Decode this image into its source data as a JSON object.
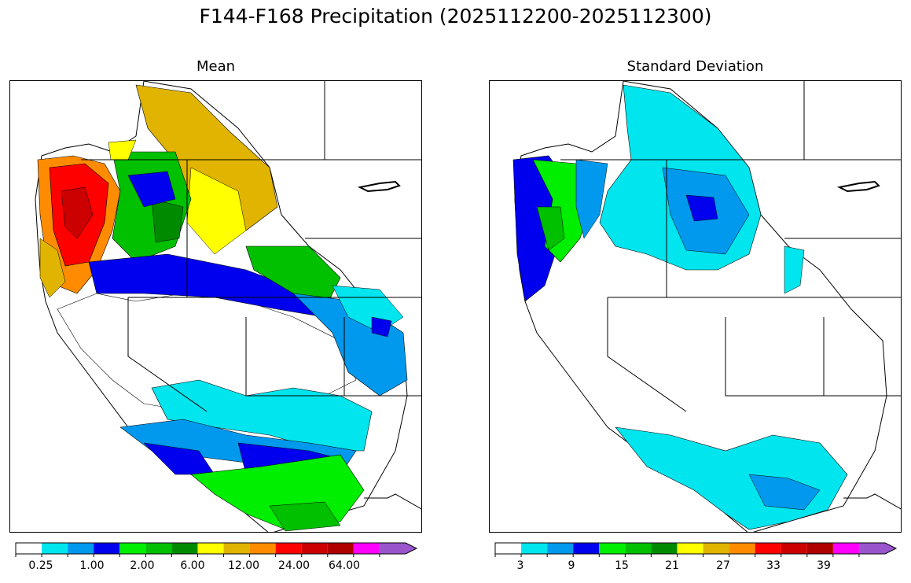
{
  "title": "F144-F168 Precipitation (2025112200-2025112300)",
  "panels": [
    {
      "title": "Mean",
      "colorbar": {
        "colors": [
          "#ffffff",
          "#00e5ee",
          "#0099ee",
          "#0000ee",
          "#00ee00",
          "#00c000",
          "#008a00",
          "#ffff00",
          "#e0b400",
          "#ff8c00",
          "#ff0000",
          "#cc0000",
          "#b00000",
          "#ff00ff",
          "#9955cc"
        ],
        "tick_labels": [
          "0.25",
          "1.00",
          "2.00",
          "6.00",
          "12.00",
          "24.00",
          "64.00"
        ]
      }
    },
    {
      "title": "Standard Deviation",
      "colorbar": {
        "colors": [
          "#ffffff",
          "#00e5ee",
          "#0099ee",
          "#0000ee",
          "#00ee00",
          "#00c000",
          "#008a00",
          "#ffff00",
          "#e0b400",
          "#ff8c00",
          "#ff0000",
          "#cc0000",
          "#b00000",
          "#ff00ff",
          "#9955cc"
        ],
        "tick_labels": [
          "3",
          "9",
          "15",
          "21",
          "27",
          "33",
          "39"
        ]
      }
    }
  ]
}
